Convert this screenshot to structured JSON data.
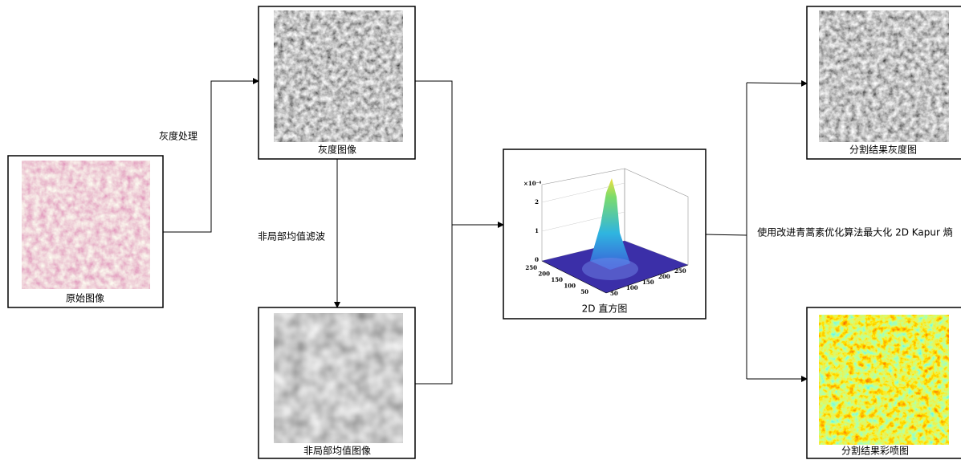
{
  "nodes": [
    {
      "label": "原始图像"
    },
    {
      "label": "灰度图像"
    },
    {
      "label": "非局部均值图像"
    },
    {
      "label": "2D 直方图"
    },
    {
      "label": "分割结果灰度图"
    },
    {
      "label": "分割结果彩喷图"
    }
  ],
  "edges": [
    {
      "label": "灰度处理"
    },
    {
      "label": "非局部均值滤波"
    },
    {
      "label": "使用改进青蒿素优化算法最大化 2D Kapur 熵"
    }
  ],
  "histogram": {
    "z_multiplier": "×10⁻⁴",
    "zticks": [
      "2",
      "1",
      "0"
    ],
    "xticks": [
      "250",
      "200",
      "150",
      "100",
      "50"
    ],
    "yticks": [
      "50",
      "100",
      "150",
      "200",
      "250"
    ]
  }
}
